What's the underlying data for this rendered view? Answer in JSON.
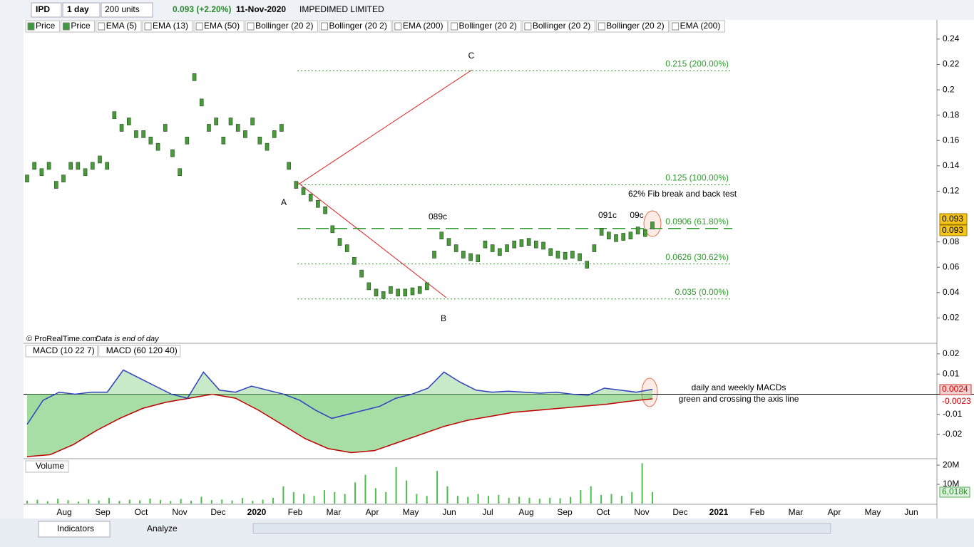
{
  "toolbar": {
    "symbol": "IPD",
    "period": "1 day",
    "units": "200 units",
    "change": "0.093 (+2.20%)",
    "date": "11-Nov-2020",
    "name": "IMPEDIMED LIMITED"
  },
  "price_legend": [
    "Price",
    "Price",
    "EMA (5)",
    "EMA (13)",
    "EMA (50)",
    "Bollinger (20 2)",
    "Bollinger (20 2)",
    "EMA (200)",
    "Bollinger (20 2)",
    "Bollinger (20 2)",
    "Bollinger (20 2)",
    "EMA (200)"
  ],
  "price_panel": {
    "ylim": [
      0,
      0.245
    ],
    "yticks": [
      0.02,
      0.04,
      0.06,
      0.08,
      0.12,
      0.14,
      0.16,
      0.18,
      0.2,
      0.22,
      0.24
    ],
    "values": [
      0.13,
      0.14,
      0.135,
      0.14,
      0.125,
      0.13,
      0.14,
      0.14,
      0.135,
      0.14,
      0.145,
      0.14,
      0.18,
      0.17,
      0.175,
      0.165,
      0.165,
      0.16,
      0.155,
      0.17,
      0.15,
      0.135,
      0.16,
      0.21,
      0.19,
      0.17,
      0.175,
      0.16,
      0.175,
      0.17,
      0.165,
      0.175,
      0.16,
      0.155,
      0.165,
      0.17,
      0.14,
      0.125,
      0.12,
      0.115,
      0.11,
      0.105,
      0.09,
      0.08,
      0.075,
      0.065,
      0.055,
      0.045,
      0.04,
      0.038,
      0.042,
      0.04,
      0.04,
      0.041,
      0.042,
      0.045,
      0.07,
      0.085,
      0.08,
      0.075,
      0.07,
      0.068,
      0.067,
      0.078,
      0.075,
      0.072,
      0.075,
      0.078,
      0.079,
      0.08,
      0.078,
      0.077,
      0.072,
      0.07,
      0.069,
      0.07,
      0.068,
      0.062,
      0.075,
      0.088,
      0.085,
      0.083,
      0.084,
      0.085,
      0.089,
      0.087,
      0.093
    ],
    "last_price": 0.093,
    "fib": [
      {
        "value": 0.215,
        "label": "0.215 (200.00%)"
      },
      {
        "value": 0.125,
        "label": "0.125 (100.00%)"
      },
      {
        "value": 0.0906,
        "label": "0.0906 (61.80%)"
      },
      {
        "value": 0.0626,
        "label": "0.0626 (30.62%)"
      },
      {
        "value": 0.035,
        "label": "0.035 (0.00%)"
      }
    ],
    "points": [
      "A",
      "B",
      "C"
    ],
    "peaks": [
      "089c",
      "091c",
      "09c"
    ],
    "note": "62% Fib break and back test",
    "copyright": "© ProRealTime.com",
    "data_note": "Data is end of day"
  },
  "macd_panel": {
    "legend": [
      "MACD (10 22 7)",
      "MACD (60 120 40)"
    ],
    "ylim": [
      -0.032,
      0.0249
    ],
    "yticks": [
      0.02,
      0.01,
      -0.01,
      -0.02
    ],
    "fast": [
      -0.015,
      -0.003,
      0.001,
      0.0,
      0.001,
      0.001,
      0.012,
      0.008,
      0.004,
      0.0,
      -0.002,
      0.011,
      0.002,
      0.001,
      0.004,
      0.002,
      0.0,
      -0.003,
      -0.008,
      -0.012,
      -0.01,
      -0.008,
      -0.006,
      -0.002,
      0.0,
      0.003,
      0.011,
      0.006,
      0.002,
      0.001,
      0.0015,
      0.001,
      0.0005,
      0.001,
      0.0,
      -0.0005,
      0.003,
      0.002,
      0.001,
      0.0024
    ],
    "slow": [
      -0.031,
      -0.03,
      -0.025,
      -0.018,
      -0.012,
      -0.007,
      -0.004,
      -0.002,
      0.0,
      -0.002,
      -0.008,
      -0.015,
      -0.022,
      -0.027,
      -0.029,
      -0.028,
      -0.024,
      -0.02,
      -0.016,
      -0.013,
      -0.011,
      -0.009,
      -0.008,
      -0.007,
      -0.006,
      -0.005,
      -0.0035,
      -0.0023
    ],
    "last_fast": 0.0024,
    "last_slow": -0.0023,
    "notes": [
      "daily and weekly MACDs",
      "green and crossing the axis line"
    ]
  },
  "volume_panel": {
    "legend": "Volume",
    "ylim": [
      0,
      23000000
    ],
    "yticks": [
      {
        "value": 20000000,
        "label": "20M"
      },
      {
        "value": 10000000,
        "label": "10M"
      }
    ],
    "last": {
      "value": 6018000,
      "label": "6,018k"
    },
    "values": [
      1500000,
      2000000,
      1200000,
      2500000,
      1800000,
      1000000,
      2200000,
      1600000,
      3000000,
      1400000,
      2000000,
      1700000,
      2600000,
      1900000,
      1300000,
      2400000,
      1500000,
      3500000,
      1800000,
      2100000,
      1600000,
      2900000,
      1400000,
      2000000,
      3000000,
      9000000,
      6000000,
      5000000,
      4000000,
      7000000,
      6000000,
      5000000,
      11000000,
      15000000,
      8000000,
      6000000,
      19000000,
      12000000,
      5000000,
      4000000,
      17000000,
      9000000,
      4000000,
      3500000,
      5000000,
      4000000,
      4500000,
      3000000,
      3500000,
      3000000,
      2500000,
      3000000,
      2800000,
      3500000,
      7000000,
      9000000,
      4500000,
      5000000,
      4000000,
      6000000,
      21000000,
      6018000
    ]
  },
  "months": [
    "Aug",
    "Sep",
    "Oct",
    "Nov",
    "Dec",
    "2020",
    "Feb",
    "Mar",
    "Apr",
    "May",
    "Jun",
    "Jul",
    "Aug",
    "Sep",
    "Oct",
    "Nov",
    "Dec",
    "2021",
    "Feb",
    "Mar",
    "Apr",
    "May",
    "Jun"
  ],
  "bottom": {
    "indicators": "Indicators",
    "analyze": "Analyze"
  }
}
